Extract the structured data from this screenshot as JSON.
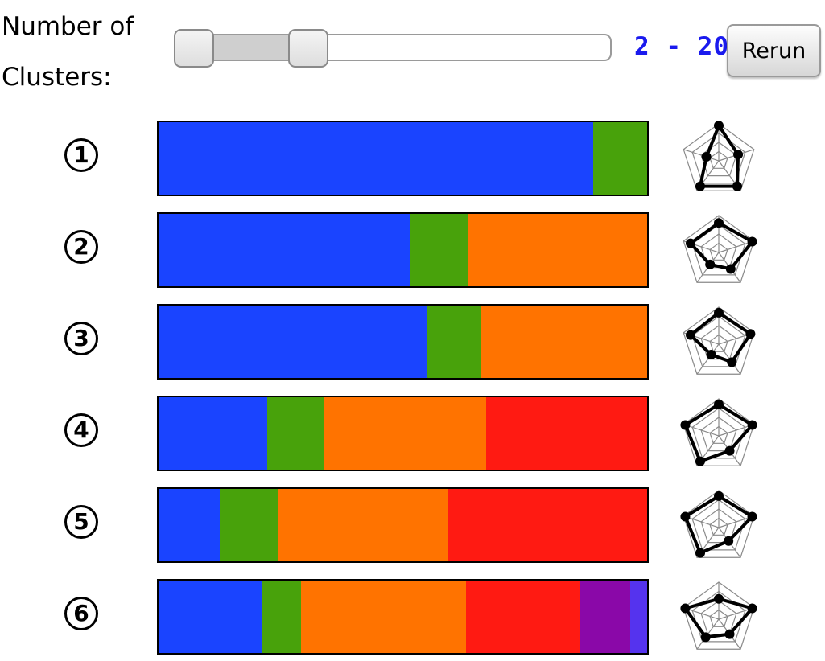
{
  "controls": {
    "label": "Number of Clusters:",
    "range_text": "2 - 20",
    "rerun_label": "Rerun",
    "slider": {
      "min_value": 2,
      "max_value": 20,
      "low_fraction": 0.0,
      "high_fraction": 0.2
    }
  },
  "colors": {
    "blue": "#1a44ff",
    "green": "#48a20b",
    "orange": "#ff7300",
    "red": "#ff1a12",
    "purple": "#8a08a8",
    "indigo": "#5533ee"
  },
  "clusters": [
    {
      "index": "1",
      "segments": [
        {
          "color": "blue",
          "share": 0.89
        },
        {
          "color": "green",
          "share": 0.11
        }
      ],
      "radar": [
        0.95,
        0.55,
        0.85,
        0.85,
        0.35
      ]
    },
    {
      "index": "2",
      "segments": [
        {
          "color": "blue",
          "share": 0.515
        },
        {
          "color": "green",
          "share": 0.118
        },
        {
          "color": "orange",
          "share": 0.367
        }
      ],
      "radar": [
        0.8,
        0.95,
        0.55,
        0.4,
        0.8
      ]
    },
    {
      "index": "3",
      "segments": [
        {
          "color": "blue",
          "share": 0.55
        },
        {
          "color": "green",
          "share": 0.11
        },
        {
          "color": "orange",
          "share": 0.34
        }
      ],
      "radar": [
        0.85,
        0.9,
        0.6,
        0.35,
        0.8
      ]
    },
    {
      "index": "4",
      "segments": [
        {
          "color": "blue",
          "share": 0.222
        },
        {
          "color": "green",
          "share": 0.118
        },
        {
          "color": "orange",
          "share": 0.33
        },
        {
          "color": "red",
          "share": 0.33
        }
      ],
      "radar": [
        0.85,
        0.95,
        0.5,
        0.85,
        0.95
      ]
    },
    {
      "index": "5",
      "segments": [
        {
          "color": "blue",
          "share": 0.126
        },
        {
          "color": "green",
          "share": 0.118
        },
        {
          "color": "orange",
          "share": 0.349
        },
        {
          "color": "red",
          "share": 0.407
        }
      ],
      "radar": [
        0.85,
        0.95,
        0.45,
        0.85,
        0.95
      ]
    },
    {
      "index": "6",
      "segments": [
        {
          "color": "blue",
          "share": 0.211
        },
        {
          "color": "green",
          "share": 0.08
        },
        {
          "color": "orange",
          "share": 0.338
        },
        {
          "color": "red",
          "share": 0.235
        },
        {
          "color": "purple",
          "share": 0.101
        },
        {
          "color": "indigo",
          "share": 0.035
        }
      ],
      "radar": [
        0.55,
        0.95,
        0.5,
        0.6,
        0.95
      ]
    }
  ]
}
